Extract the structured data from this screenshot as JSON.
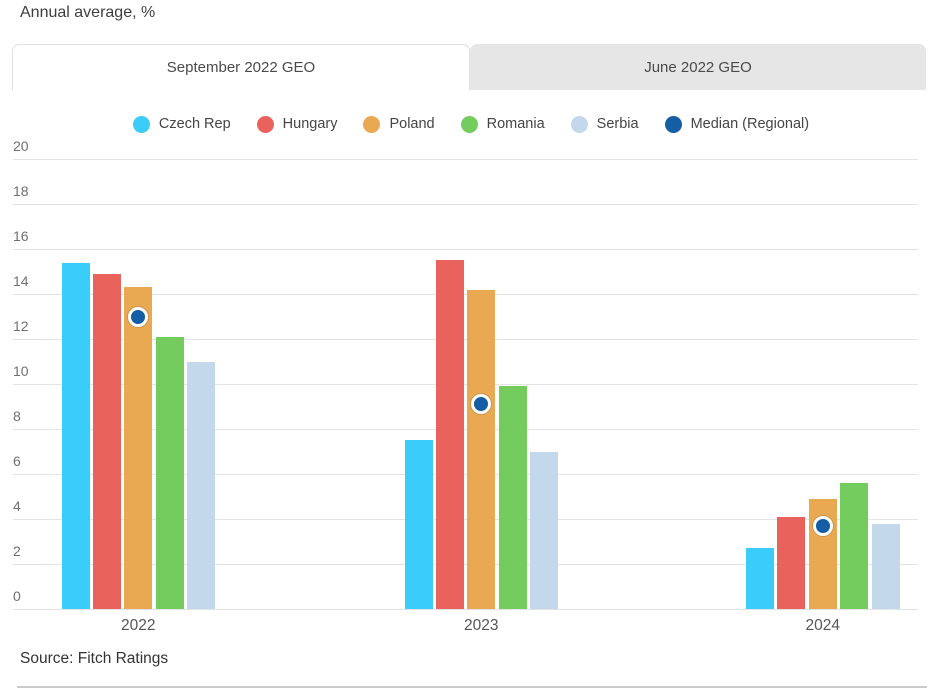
{
  "page": {
    "title": "Annual average, %",
    "source": "Source: Fitch Ratings"
  },
  "tabs": [
    {
      "label": "September 2022 GEO",
      "active": true
    },
    {
      "label": "June 2022 GEO",
      "active": false
    }
  ],
  "chart_data": {
    "type": "bar",
    "title": "Annual average, %",
    "categories": [
      "2022",
      "2023",
      "2024"
    ],
    "series": [
      {
        "name": "Czech Rep",
        "type": "bar",
        "color": "#3BCDF9",
        "values": [
          15.4,
          7.5,
          2.7
        ]
      },
      {
        "name": "Hungary",
        "type": "bar",
        "color": "#E9635C",
        "values": [
          14.9,
          15.5,
          4.1
        ]
      },
      {
        "name": "Poland",
        "type": "bar",
        "color": "#E8A952",
        "values": [
          14.3,
          14.2,
          4.9
        ]
      },
      {
        "name": "Romania",
        "type": "bar",
        "color": "#74CB5E",
        "values": [
          12.1,
          9.9,
          5.6
        ]
      },
      {
        "name": "Serbia",
        "type": "bar",
        "color": "#C4D8EC",
        "values": [
          11.0,
          7.0,
          3.8
        ]
      },
      {
        "name": "Median (Regional)",
        "type": "point",
        "color": "#155DA5",
        "values": [
          13.0,
          9.1,
          3.7
        ]
      }
    ],
    "xlabel": "",
    "ylabel": "",
    "ylim": [
      0,
      20
    ],
    "yticks": [
      0,
      2,
      4,
      6,
      8,
      10,
      12,
      14,
      16,
      18,
      20
    ],
    "grid": true,
    "legend_position": "top",
    "grid_color": "#E4E4E4"
  }
}
